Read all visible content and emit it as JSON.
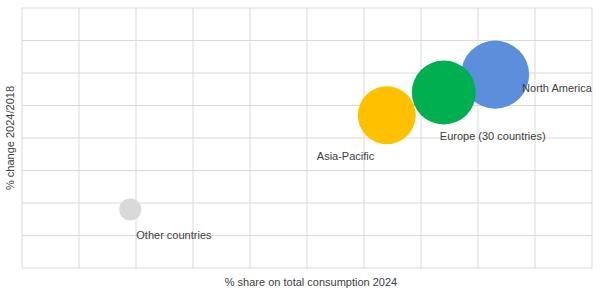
{
  "chart_data": {
    "type": "bubble",
    "x_label": "% share on total consumption 2024",
    "y_label": "% change 2024/2018",
    "xlim": [
      0,
      50
    ],
    "xticks": [
      0,
      5,
      10,
      15,
      20,
      25,
      30,
      35,
      40,
      45,
      50
    ],
    "ylim": [
      0,
      80
    ],
    "yticks": [
      0,
      10,
      20,
      30,
      40,
      50,
      60,
      70,
      80
    ],
    "grid": true,
    "tick_labels": false,
    "series": [
      {
        "name": "North America",
        "color": "#5b8fdb",
        "x": [
          41.5
        ],
        "values": [
          59.5
        ],
        "size": [
          113
        ]
      },
      {
        "name": "Europe (30 countries)",
        "color": "#00b050",
        "x": [
          37
        ],
        "values": [
          54
        ],
        "size": [
          100
        ]
      },
      {
        "name": "Asia-Pacific",
        "color": "#ffc000",
        "x": [
          32
        ],
        "values": [
          47
        ],
        "size": [
          82
        ]
      },
      {
        "name": "Other countries",
        "color": "#d9d9d9",
        "x": [
          9.5
        ],
        "values": [
          18
        ],
        "size": [
          12
        ]
      }
    ]
  }
}
